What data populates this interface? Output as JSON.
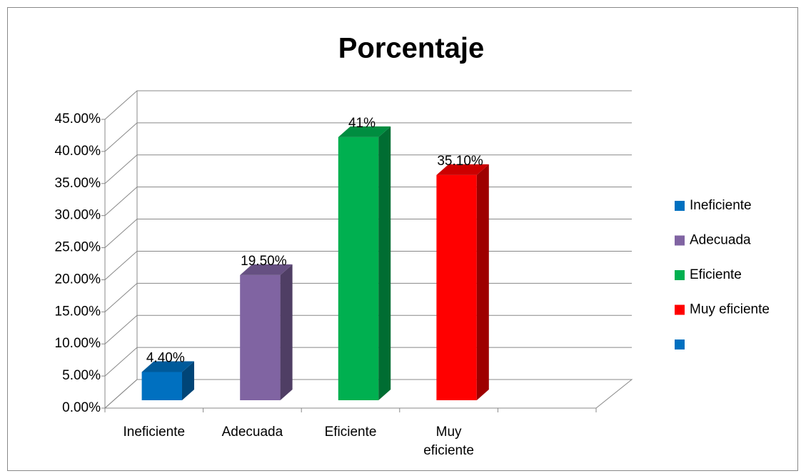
{
  "chart_data": {
    "type": "bar3d",
    "title": "Porcentaje",
    "categories": [
      "Ineficiente",
      "Adecuada",
      "Eficiente",
      "Muy eficiente",
      null
    ],
    "values": [
      4.4,
      19.5,
      41,
      35.1,
      null
    ],
    "value_labels": [
      "4.40%",
      "19.50%",
      "41%",
      "35.10%",
      null
    ],
    "colors": [
      "#0070c0",
      "#8064a2",
      "#00b050",
      "#ff0000",
      "#0070c0"
    ],
    "ylim": [
      0,
      45
    ],
    "yticks": [
      {
        "value": 0,
        "label": "0.00%"
      },
      {
        "value": 5,
        "label": "5.00%"
      },
      {
        "value": 10,
        "label": "10.00%"
      },
      {
        "value": 15,
        "label": "15.00%"
      },
      {
        "value": 20,
        "label": "20.00%"
      },
      {
        "value": 25,
        "label": "25.00%"
      },
      {
        "value": 30,
        "label": "30.00%"
      },
      {
        "value": 35,
        "label": "35.00%"
      },
      {
        "value": 40,
        "label": "40.00%"
      },
      {
        "value": 45,
        "label": "45.00%"
      }
    ],
    "grid": true,
    "legend": "right"
  }
}
